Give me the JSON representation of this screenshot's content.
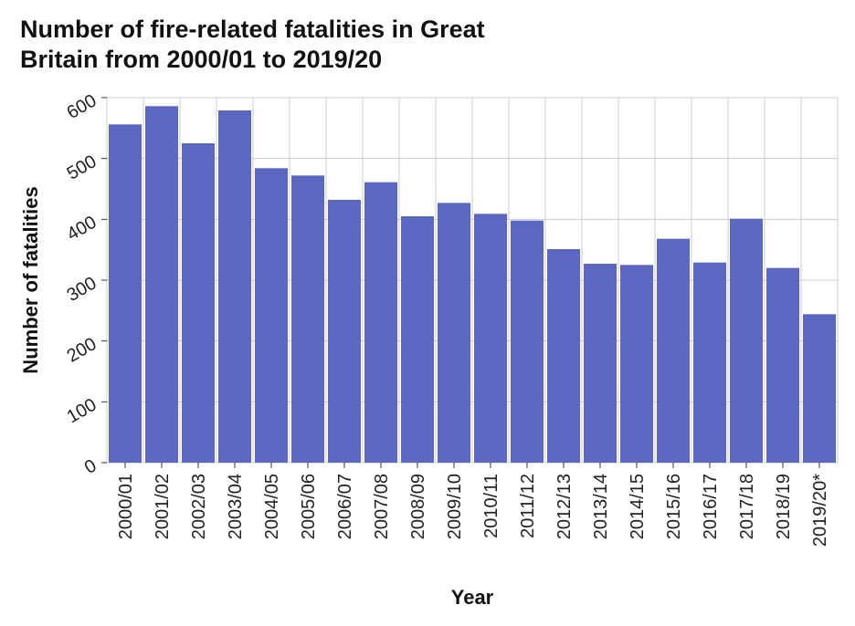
{
  "chart_data": {
    "type": "bar",
    "title_lines": [
      "Number of fire-related fatalities in Great",
      "Britain from 2000/01 to 2019/20"
    ],
    "xlabel": "Year",
    "ylabel": "Number of fatalities",
    "categories": [
      "2000/01",
      "2001/02",
      "2002/03",
      "2003/04",
      "2004/05",
      "2005/06",
      "2006/07",
      "2007/08",
      "2008/09",
      "2009/10",
      "2010/11",
      "2011/12",
      "2012/13",
      "2013/14",
      "2014/15",
      "2015/16",
      "2016/17",
      "2017/18",
      "2018/19",
      "2019/20*"
    ],
    "values": [
      556,
      586,
      525,
      579,
      484,
      472,
      432,
      461,
      405,
      427,
      409,
      398,
      351,
      327,
      325,
      368,
      329,
      401,
      320,
      244
    ],
    "ylim": [
      0,
      600
    ],
    "yticks": [
      0,
      100,
      200,
      300,
      400,
      500,
      600
    ],
    "grid": true,
    "bar_color": "#5b67c1",
    "grid_color": "#cccccc"
  }
}
